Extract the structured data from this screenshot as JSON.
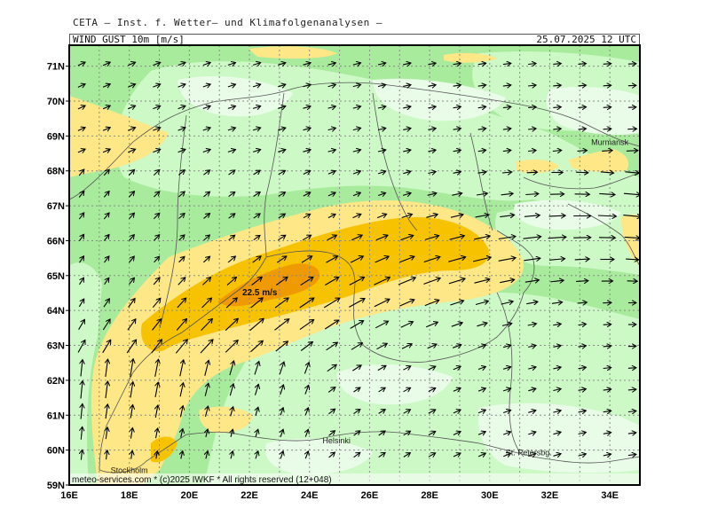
{
  "header": {
    "institute": "CETA – Inst. f. Wetter– und Klimafolgenanalysen –",
    "parameter": "WIND_GUST_10m_[m/s]",
    "datetime": "25.07.2025 12 UTC"
  },
  "map": {
    "lat_labels": [
      "59N",
      "60N",
      "61N",
      "62N",
      "63N",
      "64N",
      "65N",
      "66N",
      "67N",
      "68N",
      "69N",
      "70N",
      "71N"
    ],
    "lon_labels": [
      "16E",
      "18E",
      "20E",
      "22E",
      "24E",
      "26E",
      "28E",
      "30E",
      "32E",
      "34E"
    ],
    "max_label": "22.5 m/s",
    "cities": [
      {
        "name": "Stockholm",
        "lon": 18.0,
        "lat": 59.45
      },
      {
        "name": "Helsinki",
        "lon": 24.9,
        "lat": 60.3
      },
      {
        "name": "St. Petersbg.",
        "lon": 31.3,
        "lat": 59.95
      },
      {
        "name": "Murmansk",
        "lon": 34.0,
        "lat": 68.85
      }
    ],
    "footer": "meteo-services.com * (c)2025 IWKF * All rights reserved (12+048)",
    "colors": {
      "calm": "#e8fce8",
      "light": "#ccf9c6",
      "moderate": "#a8eb9c",
      "fresh": "#fde787",
      "strong": "#f7c300",
      "gale": "#ef9a00",
      "frame": "#000000",
      "grid": "#8a8a8a"
    }
  }
}
